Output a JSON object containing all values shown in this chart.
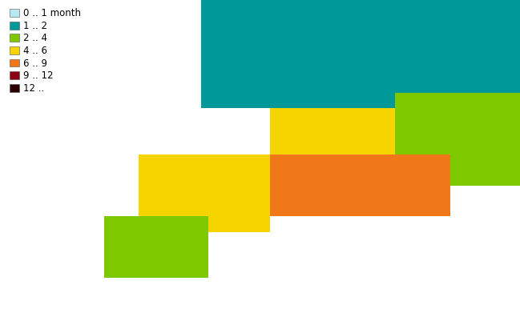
{
  "legend_labels": [
    "0 .. 1 month",
    "1 .. 2",
    "2 .. 4",
    "4 .. 6",
    "6 .. 9",
    "9 .. 12",
    "12 .."
  ],
  "legend_colors": [
    "#b8e8f4",
    "#009898",
    "#7ec800",
    "#f5d400",
    "#f07818",
    "#8b0015",
    "#2a0000"
  ],
  "background_color": "#ffffff",
  "map_extent_lon": [
    -25,
    50
  ],
  "map_extent_lat": [
    32,
    72
  ],
  "border_color": "#111111",
  "border_linewidth": 0.5,
  "legend_fontsize": 8.5,
  "figsize": [
    6.49,
    3.86
  ],
  "dpi": 100,
  "country_fill_colors": {
    "Iceland": "#b8e8f4",
    "Norway": "#009898",
    "Sweden": "#009898",
    "Finland": "#009898",
    "Russia": "#7ec800",
    "Estonia": "#7ec800",
    "Latvia": "#7ec800",
    "Lithuania": "#7ec800",
    "Denmark": "#009898",
    "Ireland": "#009898",
    "United Kingdom": "#7ec800",
    "Netherlands": "#f07818",
    "Belgium": "#f07818",
    "Luxembourg": "#f07818",
    "Germany": "#f5d400",
    "Poland": "#f07818",
    "Czech Republic": "#f07818",
    "Czechia": "#f07818",
    "Slovakia": "#f5d400",
    "Austria": "#f07818",
    "Switzerland": "#f5d400",
    "France": "#f5d400",
    "Spain": "#7ec800",
    "Portugal": "#7ec800",
    "Italy": "#f5d400",
    "Hungary": "#f07818",
    "Romania": "#f07818",
    "Bulgaria": "#f07818",
    "Moldova": "#f07818",
    "Ukraine": "#f07818",
    "Belarus": "#f5d400",
    "Serbia": "#f07818",
    "Croatia": "#f07818",
    "Slovenia": "#f07818",
    "Bosnia and Herzegovina": "#f07818",
    "Bosnia and Herz.": "#f07818",
    "Montenegro": "#f07818",
    "Albania": "#f07818",
    "North Macedonia": "#f07818",
    "Macedonia": "#f07818",
    "Greece": "#f5d400",
    "Turkey": "#f5d400",
    "Cyprus": "#f5d400",
    "Kazakhstan": "#7ec800",
    "Georgia": "#f5d400",
    "Armenia": "#f07818",
    "Azerbaijan": "#f07818",
    "Kosovo": "#f07818",
    "Malta": "#f5d400",
    "Andorra": "#7ec800",
    "San Marino": "#f5d400",
    "Liechtenstein": "#f5d400",
    "Monaco": "#f5d400"
  },
  "default_color": "#f0f0f0",
  "ocean_color": "#ffffff",
  "uncolored_outside": "#ffffff"
}
